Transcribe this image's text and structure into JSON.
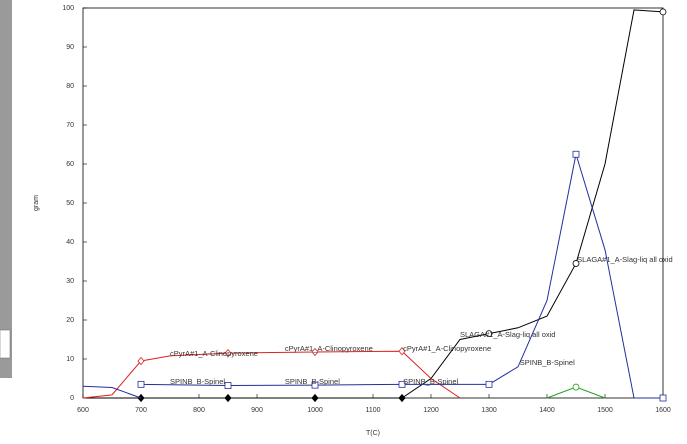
{
  "chart_data": {
    "type": "line",
    "xlabel": "T(C)",
    "ylabel": "gram",
    "xlim": [
      600,
      1600
    ],
    "ylim": [
      0,
      100
    ],
    "xticks": [
      600,
      700,
      800,
      900,
      1000,
      1100,
      1200,
      1300,
      1400,
      1500,
      1600
    ],
    "yticks": [
      0,
      10,
      20,
      30,
      40,
      50,
      60,
      70,
      80,
      90,
      100
    ],
    "series": [
      {
        "color": "#000000",
        "x": [
          600,
          700,
          850,
          1000,
          1150,
          1200,
          1250,
          1300,
          1350,
          1400,
          1450,
          1500,
          1550,
          1600
        ],
        "values": [
          0,
          0,
          0,
          0,
          0,
          5,
          15,
          16.5,
          18,
          21,
          34.5,
          60,
          99.5,
          99
        ],
        "markers": {
          "diamond-filled": [
            700,
            850,
            1000,
            1150
          ],
          "circle": [
            1300,
            1450,
            1600
          ]
        }
      },
      {
        "color": "#e02020",
        "x": [
          600,
          650,
          700,
          750,
          850,
          1000,
          1150,
          1200,
          1250
        ],
        "values": [
          0,
          0.8,
          9.5,
          10.8,
          11.5,
          11.8,
          12,
          5,
          0
        ],
        "markers": {
          "diamond": [
            700,
            850,
            1000,
            1150
          ]
        }
      },
      {
        "color": "#2030a0",
        "x": [
          600,
          650,
          700
        ],
        "values": [
          3,
          2.7,
          0
        ],
        "markers": {}
      },
      {
        "color": "#2030a0",
        "x": [
          700,
          850,
          1000,
          1150,
          1300,
          1350,
          1400,
          1450,
          1500,
          1550,
          1600
        ],
        "values": [
          3.5,
          3.2,
          3.3,
          3.5,
          3.5,
          8,
          25,
          62.5,
          38,
          0,
          0
        ],
        "markers": {
          "square": [
            700,
            850,
            1000,
            1150,
            1300,
            1450,
            1600
          ]
        }
      },
      {
        "color": "#20a020",
        "x": [
          1400,
          1450,
          1500
        ],
        "values": [
          0,
          2.8,
          0
        ],
        "markers": {
          "circle": [
            1450
          ]
        }
      }
    ],
    "annotations": [
      {
        "text": "cPyrA#1_A-Clinopyroxene",
        "x": 750,
        "y": 11.3,
        "color": "#e02020"
      },
      {
        "text": "cPyrA#1_A-Clinopyroxene",
        "x": 948,
        "y": 12.5,
        "color": "#e02020"
      },
      {
        "text": "cPyrA#1_A-Clinopyroxene",
        "x": 1152,
        "y": 12.5,
        "color": "#e02020"
      },
      {
        "text": "SPINB_B-Spinel",
        "x": 750,
        "y": 4.1,
        "color": "#2030a0"
      },
      {
        "text": "SPINB_B-Spinel",
        "x": 948,
        "y": 4.1,
        "color": "#2030a0"
      },
      {
        "text": "SPINB_B-Spinel",
        "x": 1152,
        "y": 4.1,
        "color": "#2030a0"
      },
      {
        "text": "SPINB_B-Spinel",
        "x": 1353,
        "y": 9,
        "color": "#2030a0"
      },
      {
        "text": "SLAGA#1_A-Slag-liq all oxid",
        "x": 1250,
        "y": 16.2,
        "color": "#222222"
      },
      {
        "text": "SLAGA#1_A-Slag-liq all oxid",
        "x": 1452,
        "y": 35.4,
        "color": "#222222"
      }
    ]
  }
}
